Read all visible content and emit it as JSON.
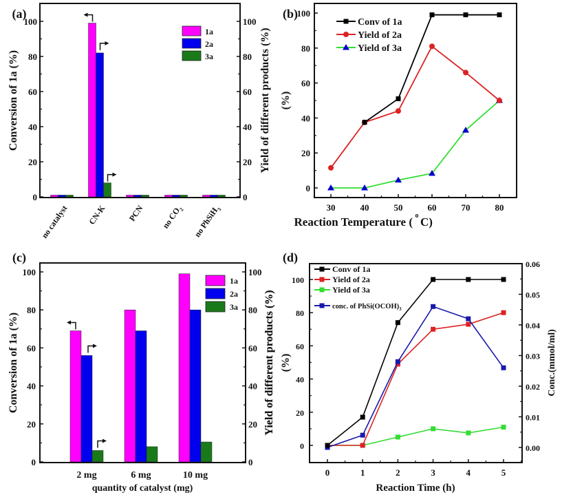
{
  "chart_data": [
    {
      "id": "a",
      "panel_label": "(a)",
      "type": "bar",
      "categories": [
        "no catalyst",
        "CN-K",
        "PCN",
        "no CO2",
        "no PhSiH3"
      ],
      "category_labels": [
        {
          "text": "no catalyst",
          "sub": ""
        },
        {
          "text": "CN-K",
          "sub": ""
        },
        {
          "text": "PCN",
          "sub": ""
        },
        {
          "text": "no CO",
          "sub": "2"
        },
        {
          "text": "no PhSiH",
          "sub": "3"
        }
      ],
      "series": [
        {
          "name": "1a",
          "color": "#ff00ff",
          "axis": "left",
          "values": [
            1,
            99,
            1,
            1,
            1
          ]
        },
        {
          "name": "2a",
          "color": "#0000ee",
          "axis": "right",
          "values": [
            1,
            82,
            1,
            1,
            1
          ]
        },
        {
          "name": "3a",
          "color": "#1a7a1a",
          "axis": "right",
          "values": [
            1,
            8,
            1,
            1,
            1
          ]
        }
      ],
      "ylabel": "Conversion of 1a (%)",
      "y2label": "Yield of different products (%)",
      "ylim": [
        0,
        110
      ],
      "yticks": [
        0,
        20,
        40,
        60,
        80,
        100
      ],
      "legend": "top-right",
      "annotations": [
        "left-arrow on 1a (CN-K)",
        "right-arrow on 2a (CN-K)",
        "right-arrow on 3a (CN-K)"
      ]
    },
    {
      "id": "b",
      "panel_label": "(b)",
      "type": "line",
      "x": [
        30,
        40,
        50,
        60,
        70,
        80
      ],
      "series": [
        {
          "name": "Conv of 1a",
          "color": "#000000",
          "marker": "square",
          "values": [
            null,
            37.5,
            51,
            99,
            99,
            99
          ]
        },
        {
          "name": "Yield of 2a",
          "color": "#dd2222",
          "marker": "circle",
          "values": [
            11.5,
            37.5,
            44,
            81,
            66,
            50
          ]
        },
        {
          "name": "Yield of 3a",
          "color": "#33dd33",
          "marker": "triangle",
          "marker_color": "#0000cc",
          "values": [
            0,
            0,
            4.5,
            8.3,
            33,
            50
          ]
        }
      ],
      "xlabel": "Reaction Temperature (°C)",
      "xlabel_parts": [
        "Reaction Temperature (",
        "o",
        "C)"
      ],
      "ylabel": "(%)",
      "xlim": [
        25,
        85
      ],
      "ylim": [
        -5,
        105
      ],
      "xticks": [
        30,
        40,
        50,
        60,
        70,
        80
      ],
      "yticks": [
        0,
        20,
        40,
        60,
        80,
        100
      ],
      "legend": "top-left"
    },
    {
      "id": "c",
      "panel_label": "(c)",
      "type": "bar",
      "categories": [
        "2 mg",
        "6 mg",
        "10 mg"
      ],
      "series": [
        {
          "name": "1a",
          "color": "#ff00ff",
          "axis": "left",
          "values": [
            69,
            80,
            99
          ]
        },
        {
          "name": "2a",
          "color": "#0000ee",
          "axis": "right",
          "values": [
            56,
            69,
            80
          ]
        },
        {
          "name": "3a",
          "color": "#1a7a1a",
          "axis": "right",
          "values": [
            6,
            8,
            10.5
          ]
        }
      ],
      "xlabel": "quantity of catalyst (mg)",
      "ylabel": "Conversion of 1a (%)",
      "y2label": "Yield of different products (%)",
      "ylim": [
        0,
        105
      ],
      "yticks": [
        0,
        20,
        40,
        60,
        80,
        100
      ],
      "legend": "top-right",
      "annotations": [
        "left-arrow on 1a (2 mg)",
        "right-arrow on 2a (2 mg)",
        "right-arrow on 3a (2 mg)"
      ]
    },
    {
      "id": "d",
      "panel_label": "(d)",
      "type": "line",
      "x": [
        0,
        1,
        2,
        3,
        4,
        5
      ],
      "series": [
        {
          "name": "Conv of 1a",
          "color": "#000000",
          "axis": "left",
          "values": [
            0,
            17,
            74,
            100,
            100,
            100
          ]
        },
        {
          "name": "Yield of 2a",
          "color": "#dd2222",
          "axis": "left",
          "values": [
            0,
            0,
            49,
            70,
            73,
            80
          ]
        },
        {
          "name": "Yield of 3a",
          "color": "#33dd33",
          "axis": "left",
          "values": [
            0,
            0,
            5,
            10,
            7.5,
            11
          ]
        },
        {
          "name": "conc. of PhSi(OCOH)3",
          "color": "#1a1aaa",
          "axis": "right",
          "values": [
            0.0,
            0.004,
            0.028,
            0.046,
            0.042,
            0.026
          ]
        }
      ],
      "legend_entries": [
        {
          "text": "Conv of 1a",
          "sub": ""
        },
        {
          "text": "Yield of 2a",
          "sub": ""
        },
        {
          "text": "Yield of 3a",
          "sub": ""
        },
        {
          "text": "conc. of PhSi(OCOH)",
          "sub": "3"
        }
      ],
      "xlabel": "Reaction Time (h)",
      "ylabel": "Yield of different products (%)",
      "ylabel2_inner": "(%)",
      "y2label": "Conc.(mmol/ml)",
      "xlim": [
        -0.5,
        5.5
      ],
      "ylim": [
        -10,
        110
      ],
      "y2lim": [
        -0.005,
        0.06
      ],
      "xticks": [
        0,
        1,
        2,
        3,
        4,
        5
      ],
      "yticks": [
        0,
        20,
        40,
        60,
        80,
        100
      ],
      "y2ticks": [
        "0.00",
        "0.01",
        "0.02",
        "0.03",
        "0.04",
        "0.05",
        "0.06"
      ],
      "legend": "top-left"
    }
  ]
}
